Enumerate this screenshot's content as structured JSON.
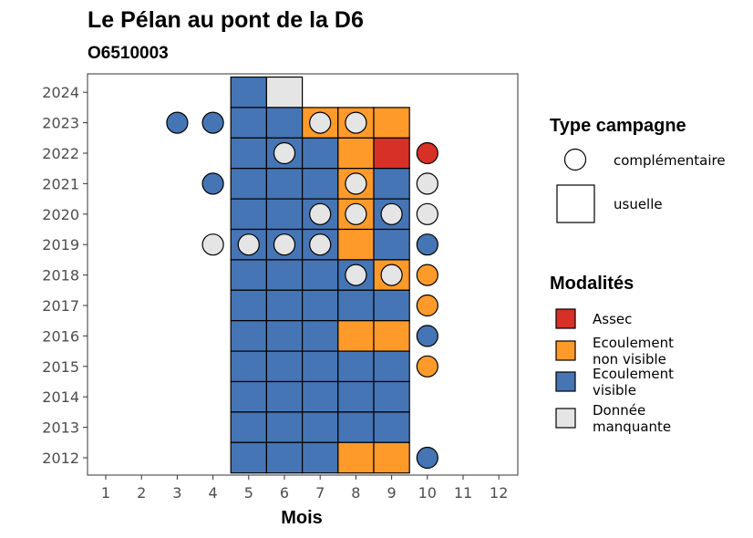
{
  "chart_data": {
    "type": "heatmap",
    "title": "Le Pélan au pont de la D6",
    "subtitle": "O6510003",
    "xlabel": "Mois",
    "ylabel": "",
    "x_ticks": [
      "1",
      "2",
      "3",
      "4",
      "5",
      "6",
      "7",
      "8",
      "9",
      "10",
      "11",
      "12"
    ],
    "y_ticks": [
      "2012",
      "2013",
      "2014",
      "2015",
      "2016",
      "2017",
      "2018",
      "2019",
      "2020",
      "2021",
      "2022",
      "2023",
      "2024"
    ],
    "colors": {
      "Assec": "#d73027",
      "Ecoulement non visible": "#fd9a2a",
      "Ecoulement visible": "#4575b4",
      "Donnée manquante": "#e5e5e5"
    },
    "legend_type": {
      "title": "Type campagne",
      "items": [
        {
          "shape": "circle",
          "label": "complémentaire"
        },
        {
          "shape": "square",
          "label": "usuelle"
        }
      ]
    },
    "legend_modalites": {
      "title": "Modalités",
      "items": [
        {
          "key": "Assec",
          "lines": [
            "Assec"
          ]
        },
        {
          "key": "Ecoulement non visible",
          "lines": [
            "Ecoulement",
            "non visible"
          ]
        },
        {
          "key": "Ecoulement visible",
          "lines": [
            "Ecoulement",
            "visible"
          ]
        },
        {
          "key": "Donnée manquante",
          "lines": [
            "Donnée",
            "manquante"
          ]
        }
      ]
    },
    "observations": [
      {
        "year": 2024,
        "month": 5,
        "shape": "square",
        "status": "Ecoulement visible"
      },
      {
        "year": 2024,
        "month": 6,
        "shape": "square",
        "status": "Donnée manquante"
      },
      {
        "year": 2023,
        "month": 3,
        "shape": "circle",
        "status": "Ecoulement visible"
      },
      {
        "year": 2023,
        "month": 4,
        "shape": "circle",
        "status": "Ecoulement visible"
      },
      {
        "year": 2023,
        "month": 5,
        "shape": "square",
        "status": "Ecoulement visible"
      },
      {
        "year": 2023,
        "month": 6,
        "shape": "square",
        "status": "Ecoulement visible"
      },
      {
        "year": 2023,
        "month": 7,
        "shape": "square",
        "status": "Ecoulement non visible"
      },
      {
        "year": 2023,
        "month": 7,
        "shape": "circle",
        "status": "Donnée manquante"
      },
      {
        "year": 2023,
        "month": 8,
        "shape": "square",
        "status": "Ecoulement non visible"
      },
      {
        "year": 2023,
        "month": 8,
        "shape": "circle",
        "status": "Donnée manquante"
      },
      {
        "year": 2023,
        "month": 9,
        "shape": "square",
        "status": "Ecoulement non visible"
      },
      {
        "year": 2022,
        "month": 5,
        "shape": "square",
        "status": "Ecoulement visible"
      },
      {
        "year": 2022,
        "month": 6,
        "shape": "square",
        "status": "Ecoulement visible"
      },
      {
        "year": 2022,
        "month": 6,
        "shape": "circle",
        "status": "Donnée manquante"
      },
      {
        "year": 2022,
        "month": 7,
        "shape": "square",
        "status": "Ecoulement visible"
      },
      {
        "year": 2022,
        "month": 8,
        "shape": "square",
        "status": "Ecoulement non visible"
      },
      {
        "year": 2022,
        "month": 9,
        "shape": "square",
        "status": "Assec"
      },
      {
        "year": 2022,
        "month": 10,
        "shape": "circle",
        "status": "Assec"
      },
      {
        "year": 2021,
        "month": 4,
        "shape": "circle",
        "status": "Ecoulement visible"
      },
      {
        "year": 2021,
        "month": 5,
        "shape": "square",
        "status": "Ecoulement visible"
      },
      {
        "year": 2021,
        "month": 6,
        "shape": "square",
        "status": "Ecoulement visible"
      },
      {
        "year": 2021,
        "month": 7,
        "shape": "square",
        "status": "Ecoulement visible"
      },
      {
        "year": 2021,
        "month": 8,
        "shape": "square",
        "status": "Ecoulement non visible"
      },
      {
        "year": 2021,
        "month": 8,
        "shape": "circle",
        "status": "Donnée manquante"
      },
      {
        "year": 2021,
        "month": 9,
        "shape": "square",
        "status": "Ecoulement visible"
      },
      {
        "year": 2021,
        "month": 10,
        "shape": "circle",
        "status": "Donnée manquante"
      },
      {
        "year": 2020,
        "month": 5,
        "shape": "square",
        "status": "Ecoulement visible"
      },
      {
        "year": 2020,
        "month": 6,
        "shape": "square",
        "status": "Ecoulement visible"
      },
      {
        "year": 2020,
        "month": 7,
        "shape": "square",
        "status": "Ecoulement visible"
      },
      {
        "year": 2020,
        "month": 7,
        "shape": "circle",
        "status": "Donnée manquante"
      },
      {
        "year": 2020,
        "month": 8,
        "shape": "square",
        "status": "Ecoulement non visible"
      },
      {
        "year": 2020,
        "month": 8,
        "shape": "circle",
        "status": "Donnée manquante"
      },
      {
        "year": 2020,
        "month": 9,
        "shape": "square",
        "status": "Ecoulement visible"
      },
      {
        "year": 2020,
        "month": 9,
        "shape": "circle",
        "status": "Donnée manquante"
      },
      {
        "year": 2020,
        "month": 10,
        "shape": "circle",
        "status": "Donnée manquante"
      },
      {
        "year": 2019,
        "month": 4,
        "shape": "circle",
        "status": "Donnée manquante"
      },
      {
        "year": 2019,
        "month": 5,
        "shape": "square",
        "status": "Ecoulement visible"
      },
      {
        "year": 2019,
        "month": 5,
        "shape": "circle",
        "status": "Donnée manquante"
      },
      {
        "year": 2019,
        "month": 6,
        "shape": "square",
        "status": "Ecoulement visible"
      },
      {
        "year": 2019,
        "month": 6,
        "shape": "circle",
        "status": "Donnée manquante"
      },
      {
        "year": 2019,
        "month": 7,
        "shape": "square",
        "status": "Ecoulement visible"
      },
      {
        "year": 2019,
        "month": 7,
        "shape": "circle",
        "status": "Donnée manquante"
      },
      {
        "year": 2019,
        "month": 8,
        "shape": "square",
        "status": "Ecoulement non visible"
      },
      {
        "year": 2019,
        "month": 9,
        "shape": "square",
        "status": "Ecoulement visible"
      },
      {
        "year": 2019,
        "month": 10,
        "shape": "circle",
        "status": "Ecoulement visible"
      },
      {
        "year": 2018,
        "month": 5,
        "shape": "square",
        "status": "Ecoulement visible"
      },
      {
        "year": 2018,
        "month": 6,
        "shape": "square",
        "status": "Ecoulement visible"
      },
      {
        "year": 2018,
        "month": 7,
        "shape": "square",
        "status": "Ecoulement visible"
      },
      {
        "year": 2018,
        "month": 8,
        "shape": "square",
        "status": "Ecoulement visible"
      },
      {
        "year": 2018,
        "month": 8,
        "shape": "circle",
        "status": "Donnée manquante"
      },
      {
        "year": 2018,
        "month": 9,
        "shape": "square",
        "status": "Ecoulement non visible"
      },
      {
        "year": 2018,
        "month": 9,
        "shape": "circle",
        "status": "Donnée manquante"
      },
      {
        "year": 2018,
        "month": 10,
        "shape": "circle",
        "status": "Ecoulement non visible"
      },
      {
        "year": 2017,
        "month": 5,
        "shape": "square",
        "status": "Ecoulement visible"
      },
      {
        "year": 2017,
        "month": 6,
        "shape": "square",
        "status": "Ecoulement visible"
      },
      {
        "year": 2017,
        "month": 7,
        "shape": "square",
        "status": "Ecoulement visible"
      },
      {
        "year": 2017,
        "month": 8,
        "shape": "square",
        "status": "Ecoulement visible"
      },
      {
        "year": 2017,
        "month": 9,
        "shape": "square",
        "status": "Ecoulement visible"
      },
      {
        "year": 2017,
        "month": 10,
        "shape": "circle",
        "status": "Ecoulement non visible"
      },
      {
        "year": 2016,
        "month": 5,
        "shape": "square",
        "status": "Ecoulement visible"
      },
      {
        "year": 2016,
        "month": 6,
        "shape": "square",
        "status": "Ecoulement visible"
      },
      {
        "year": 2016,
        "month": 7,
        "shape": "square",
        "status": "Ecoulement visible"
      },
      {
        "year": 2016,
        "month": 8,
        "shape": "square",
        "status": "Ecoulement non visible"
      },
      {
        "year": 2016,
        "month": 9,
        "shape": "square",
        "status": "Ecoulement non visible"
      },
      {
        "year": 2016,
        "month": 10,
        "shape": "circle",
        "status": "Ecoulement visible"
      },
      {
        "year": 2015,
        "month": 5,
        "shape": "square",
        "status": "Ecoulement visible"
      },
      {
        "year": 2015,
        "month": 6,
        "shape": "square",
        "status": "Ecoulement visible"
      },
      {
        "year": 2015,
        "month": 7,
        "shape": "square",
        "status": "Ecoulement visible"
      },
      {
        "year": 2015,
        "month": 8,
        "shape": "square",
        "status": "Ecoulement visible"
      },
      {
        "year": 2015,
        "month": 9,
        "shape": "square",
        "status": "Ecoulement visible"
      },
      {
        "year": 2015,
        "month": 10,
        "shape": "circle",
        "status": "Ecoulement non visible"
      },
      {
        "year": 2014,
        "month": 5,
        "shape": "square",
        "status": "Ecoulement visible"
      },
      {
        "year": 2014,
        "month": 6,
        "shape": "square",
        "status": "Ecoulement visible"
      },
      {
        "year": 2014,
        "month": 7,
        "shape": "square",
        "status": "Ecoulement visible"
      },
      {
        "year": 2014,
        "month": 8,
        "shape": "square",
        "status": "Ecoulement visible"
      },
      {
        "year": 2014,
        "month": 9,
        "shape": "square",
        "status": "Ecoulement visible"
      },
      {
        "year": 2013,
        "month": 5,
        "shape": "square",
        "status": "Ecoulement visible"
      },
      {
        "year": 2013,
        "month": 6,
        "shape": "square",
        "status": "Ecoulement visible"
      },
      {
        "year": 2013,
        "month": 7,
        "shape": "square",
        "status": "Ecoulement visible"
      },
      {
        "year": 2013,
        "month": 8,
        "shape": "square",
        "status": "Ecoulement visible"
      },
      {
        "year": 2013,
        "month": 9,
        "shape": "square",
        "status": "Ecoulement visible"
      },
      {
        "year": 2012,
        "month": 5,
        "shape": "square",
        "status": "Ecoulement visible"
      },
      {
        "year": 2012,
        "month": 6,
        "shape": "square",
        "status": "Ecoulement visible"
      },
      {
        "year": 2012,
        "month": 7,
        "shape": "square",
        "status": "Ecoulement visible"
      },
      {
        "year": 2012,
        "month": 8,
        "shape": "square",
        "status": "Ecoulement non visible"
      },
      {
        "year": 2012,
        "month": 9,
        "shape": "square",
        "status": "Ecoulement non visible"
      },
      {
        "year": 2012,
        "month": 10,
        "shape": "circle",
        "status": "Ecoulement visible"
      }
    ]
  }
}
